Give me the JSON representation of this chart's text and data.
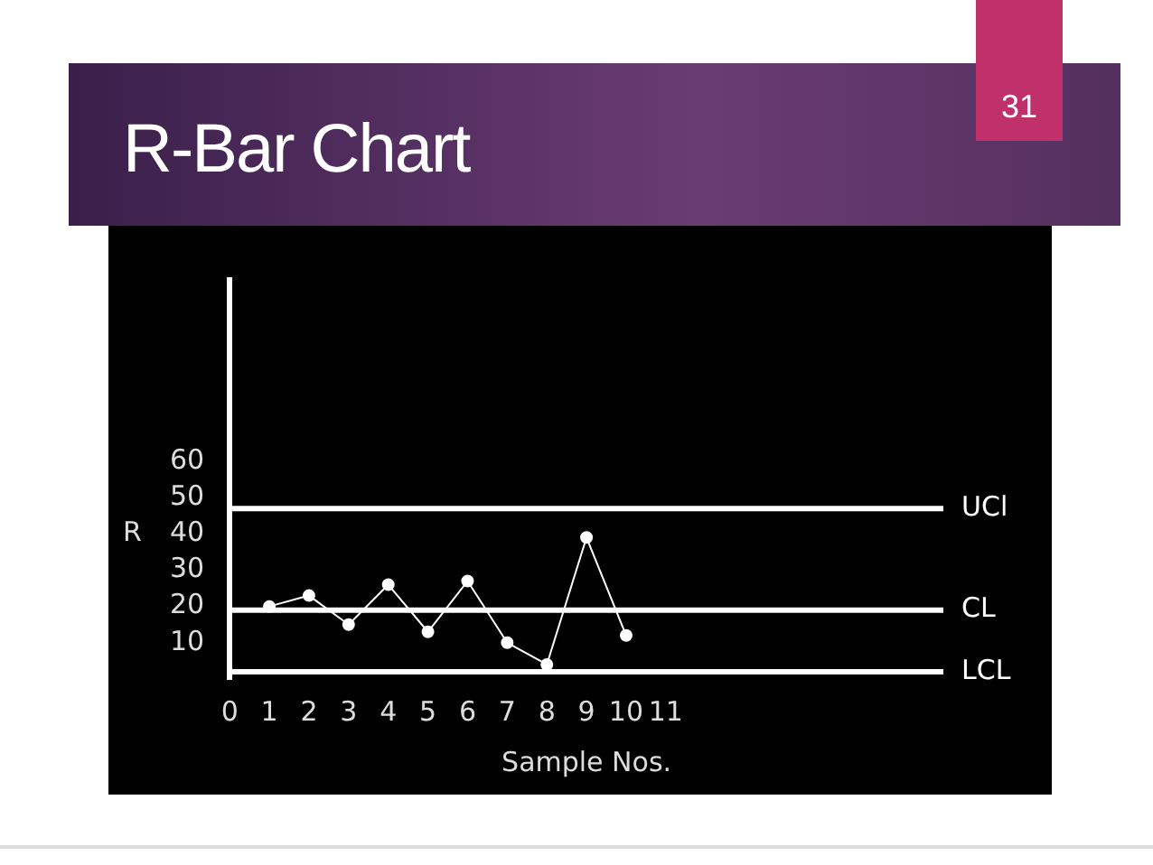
{
  "chart_data": {
    "type": "line",
    "title": "R-Bar Chart",
    "xlabel": "Sample Nos.",
    "ylabel": "R",
    "x": [
      1,
      2,
      3,
      4,
      5,
      6,
      7,
      8,
      9,
      10
    ],
    "series": [
      {
        "color": "#ffffff",
        "values": [
          20,
          23,
          15,
          26,
          13,
          27,
          10,
          4,
          39,
          12
        ]
      }
    ],
    "xlim": [
      0,
      18
    ],
    "xticks": [
      0,
      1,
      2,
      3,
      4,
      5,
      6,
      7,
      8,
      9,
      10,
      11
    ],
    "ylim": [
      0,
      110
    ],
    "yticks": [
      10,
      20,
      30,
      40,
      50,
      60
    ],
    "ref_lines": [
      {
        "axis": "y",
        "value": 47,
        "label": "UCl",
        "color": "#ffffff"
      },
      {
        "axis": "y",
        "value": 19,
        "label": "CL",
        "color": "#ffffff"
      },
      {
        "axis": "y",
        "value": 2,
        "label": "LCL",
        "color": "#ffffff"
      }
    ],
    "annotations": [
      "31"
    ],
    "legend": false,
    "marker": "circle",
    "line_style": "solid"
  }
}
